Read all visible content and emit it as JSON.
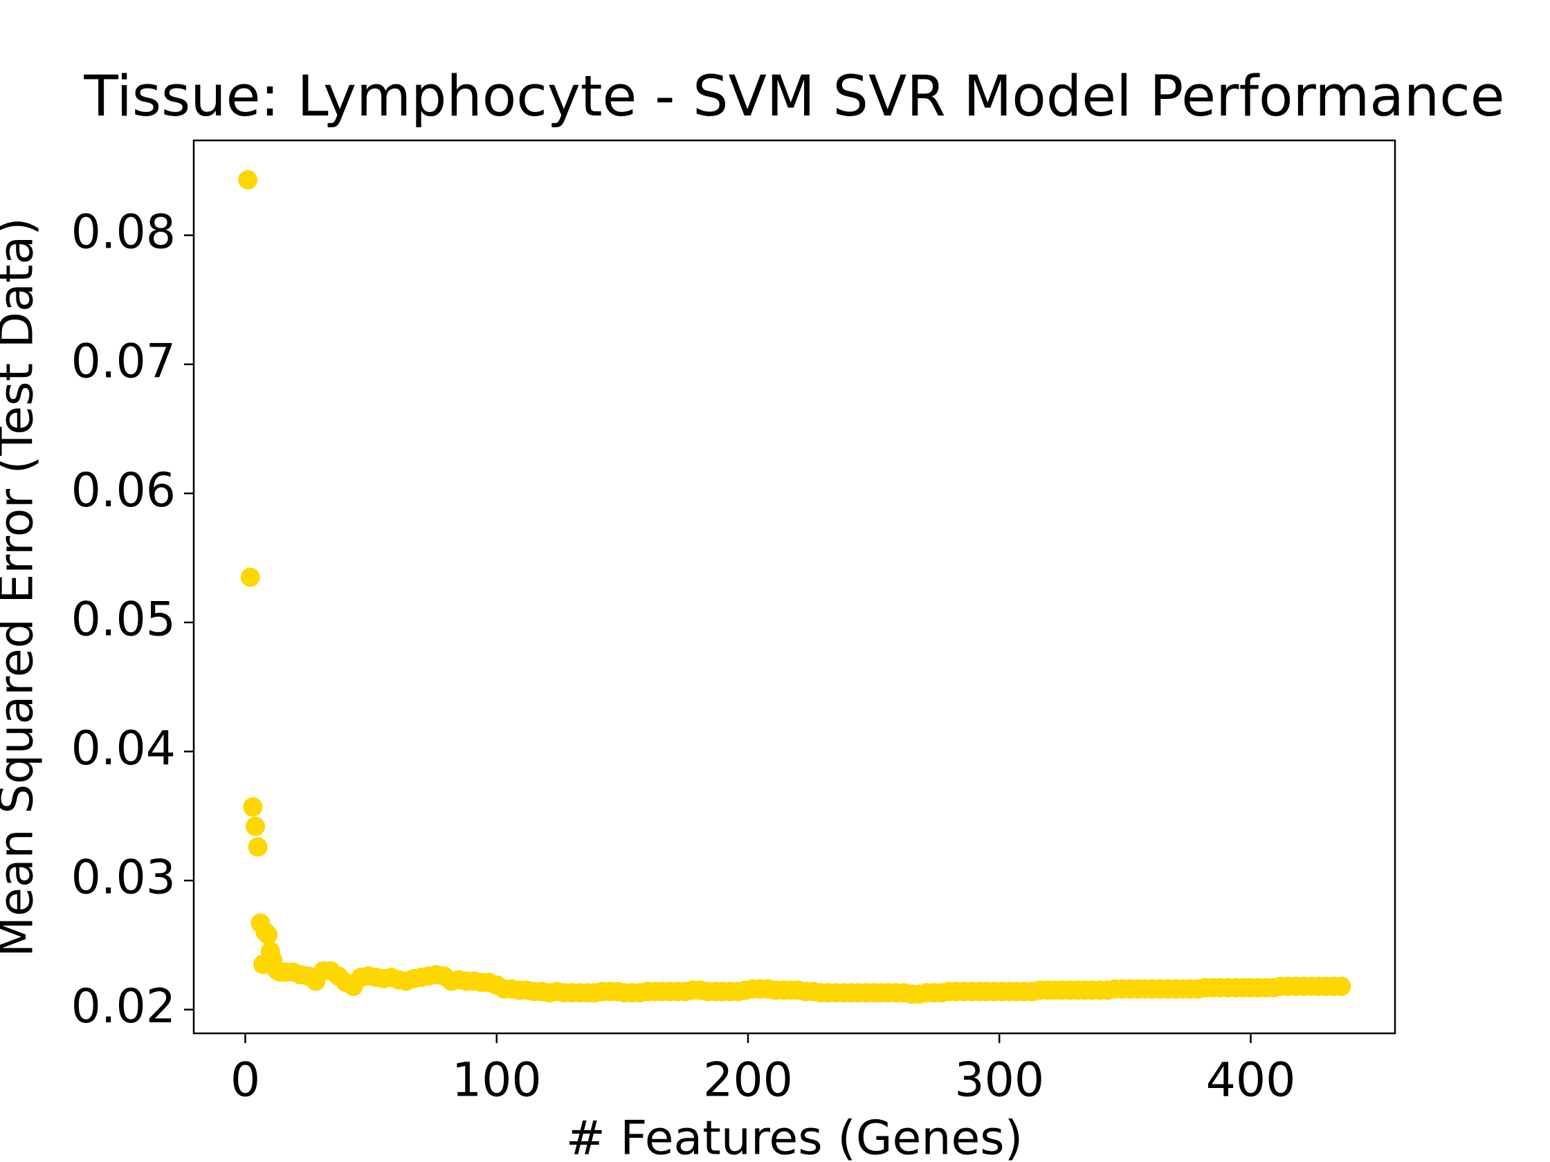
{
  "chart_data": {
    "type": "scatter",
    "title": "Tissue: Lymphocyte - SVM SVR Model Performance",
    "x_label": "# Features (Genes)",
    "y_label": "Mean Squared Error (Test Data)",
    "color": "#ffd700",
    "xlim": [
      -20.5,
      457.4
    ],
    "ylim": [
      0.01816,
      0.08735
    ],
    "xticks": [
      0,
      100,
      200,
      300,
      400
    ],
    "yticks": [
      0.02,
      0.03,
      0.04,
      0.05,
      0.06,
      0.07,
      0.08
    ],
    "x": [
      1,
      2,
      3,
      4,
      5,
      6,
      7,
      8,
      9,
      10,
      11,
      12,
      13,
      14,
      16,
      19,
      22,
      25,
      28,
      31,
      34,
      37,
      40,
      43,
      46,
      49,
      52,
      55,
      58,
      61,
      64,
      67,
      70,
      73,
      76,
      79,
      82,
      85,
      88,
      91,
      94,
      97,
      100,
      103,
      106,
      109,
      112,
      115,
      118,
      121,
      124,
      127,
      130,
      133,
      136,
      139,
      142,
      145,
      148,
      151,
      154,
      157,
      160,
      163,
      166,
      169,
      172,
      175,
      178,
      181,
      184,
      187,
      190,
      193,
      196,
      199,
      202,
      205,
      208,
      211,
      214,
      217,
      220,
      223,
      226,
      229,
      232,
      235,
      238,
      241,
      244,
      247,
      250,
      253,
      256,
      259,
      262,
      265,
      268,
      271,
      274,
      277,
      280,
      283,
      286,
      289,
      292,
      295,
      298,
      301,
      304,
      307,
      310,
      313,
      316,
      319,
      322,
      325,
      328,
      331,
      334,
      337,
      340,
      343,
      346,
      349,
      352,
      355,
      358,
      361,
      364,
      367,
      370,
      373,
      376,
      379,
      382,
      385,
      388,
      391,
      394,
      397,
      400,
      403,
      406,
      409,
      412,
      415,
      418,
      421,
      424,
      427,
      430,
      433,
      436
    ],
    "values": [
      0.0843,
      0.0535,
      0.0357,
      0.0342,
      0.0326,
      0.0267,
      0.0235,
      0.026,
      0.0258,
      0.0245,
      0.0238,
      0.0232,
      0.023,
      0.0229,
      0.0229,
      0.0229,
      0.0227,
      0.0226,
      0.0222,
      0.023,
      0.023,
      0.0226,
      0.0221,
      0.0218,
      0.0225,
      0.0226,
      0.0225,
      0.0224,
      0.0225,
      0.0223,
      0.0222,
      0.0224,
      0.0225,
      0.0226,
      0.0227,
      0.0226,
      0.0222,
      0.0223,
      0.0222,
      0.0222,
      0.0221,
      0.0221,
      0.0219,
      0.0216,
      0.0216,
      0.0215,
      0.0215,
      0.0214,
      0.0214,
      0.0213,
      0.0214,
      0.0213,
      0.0213,
      0.0213,
      0.0213,
      0.0213,
      0.0214,
      0.0214,
      0.0214,
      0.0213,
      0.0213,
      0.0213,
      0.0214,
      0.0214,
      0.0214,
      0.0214,
      0.0214,
      0.0214,
      0.0215,
      0.0215,
      0.0214,
      0.0214,
      0.0214,
      0.0214,
      0.0214,
      0.0215,
      0.0216,
      0.0216,
      0.0216,
      0.0215,
      0.0215,
      0.0215,
      0.0215,
      0.0214,
      0.0214,
      0.0213,
      0.0213,
      0.0213,
      0.0213,
      0.0213,
      0.0213,
      0.0213,
      0.0213,
      0.0213,
      0.0213,
      0.0213,
      0.0213,
      0.0212,
      0.0212,
      0.0213,
      0.0213,
      0.0213,
      0.0214,
      0.0214,
      0.0214,
      0.0214,
      0.0214,
      0.0214,
      0.0214,
      0.0214,
      0.0214,
      0.0214,
      0.0214,
      0.0214,
      0.0215,
      0.0215,
      0.0215,
      0.0215,
      0.0215,
      0.0215,
      0.0215,
      0.0215,
      0.0215,
      0.0215,
      0.0216,
      0.0216,
      0.0216,
      0.0216,
      0.0216,
      0.0216,
      0.0216,
      0.0216,
      0.0216,
      0.0216,
      0.0216,
      0.0216,
      0.0217,
      0.0217,
      0.0217,
      0.0217,
      0.0217,
      0.0217,
      0.0217,
      0.0217,
      0.0217,
      0.0217,
      0.0218,
      0.0218,
      0.0218,
      0.0218,
      0.0218,
      0.0218,
      0.0218,
      0.0218,
      0.0218
    ]
  }
}
